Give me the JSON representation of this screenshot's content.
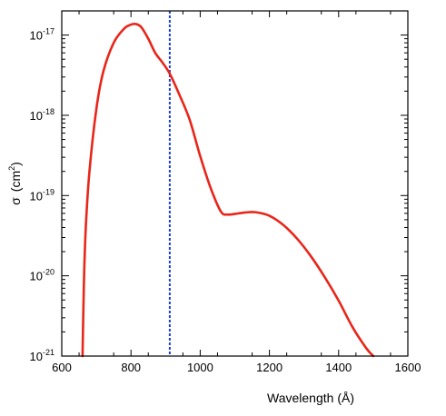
{
  "chart_data": {
    "type": "line",
    "title": "",
    "xlabel": "Wavelength (Å)",
    "ylabel": "σ (cm²)",
    "ylabel_parts": {
      "symbol": "σ",
      "open": "(",
      "unit": "cm",
      "power": "2",
      "close": ")"
    },
    "xlim": [
      600,
      1600
    ],
    "ylim": [
      1e-21,
      2e-17
    ],
    "yscale": "log",
    "grid": false,
    "legend": "none",
    "x_ticks": [
      600,
      800,
      1000,
      1200,
      1400,
      1600
    ],
    "x_tick_labels": [
      "600",
      "800",
      "1000",
      "1200",
      "1400",
      "1600"
    ],
    "y_ticks": [
      {
        "value": 1e-21,
        "base": "10",
        "exp": "-21"
      },
      {
        "value": 1e-20,
        "base": "10",
        "exp": "-20"
      },
      {
        "value": 1e-19,
        "base": "10",
        "exp": "-19"
      },
      {
        "value": 1e-18,
        "base": "10",
        "exp": "-18"
      },
      {
        "value": 1e-17,
        "base": "10",
        "exp": "-17"
      }
    ],
    "series": [
      {
        "color": "#e8261a",
        "x": [
          660,
          662,
          665,
          670,
          680,
          700,
          720,
          750,
          780,
          800,
          815,
          830,
          850,
          870,
          890,
          912,
          940,
          970,
          1000,
          1030,
          1060,
          1080,
          1100,
          1130,
          1160,
          1200,
          1240,
          1280,
          1320,
          1360,
          1400,
          1440,
          1480,
          1500
        ],
        "y": [
          1e-21,
          3e-21,
          1.2e-20,
          4.5e-20,
          2e-19,
          1.2e-18,
          3.5e-18,
          8e-18,
          1.2e-17,
          1.35e-17,
          1.37e-17,
          1.25e-17,
          9e-18,
          6e-18,
          4.6e-18,
          3.3e-18,
          1.8e-18,
          8.7e-19,
          3.1e-19,
          1.25e-19,
          6.3e-20,
          5.8e-20,
          5.9e-20,
          6.15e-20,
          6.2e-20,
          5.6e-20,
          4.3e-20,
          2.9e-20,
          1.75e-20,
          9.6e-21,
          4.9e-21,
          2.3e-21,
          1.25e-21,
          1e-21
        ]
      }
    ],
    "reference_line": {
      "x": 912,
      "color": "#1a3fd6"
    }
  }
}
